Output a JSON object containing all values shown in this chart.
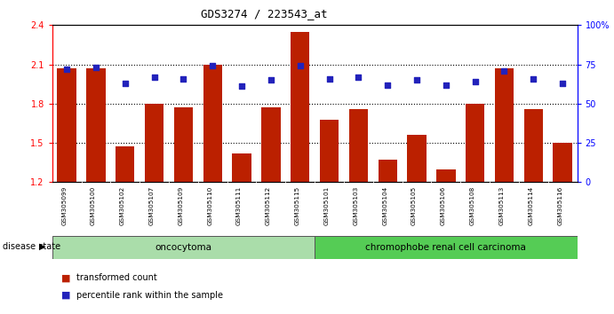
{
  "title": "GDS3274 / 223543_at",
  "samples": [
    "GSM305099",
    "GSM305100",
    "GSM305102",
    "GSM305107",
    "GSM305109",
    "GSM305110",
    "GSM305111",
    "GSM305112",
    "GSM305115",
    "GSM305101",
    "GSM305103",
    "GSM305104",
    "GSM305105",
    "GSM305106",
    "GSM305108",
    "GSM305113",
    "GSM305114",
    "GSM305116"
  ],
  "transformed_count": [
    2.07,
    2.07,
    1.47,
    1.8,
    1.77,
    2.1,
    1.42,
    1.77,
    2.35,
    1.68,
    1.76,
    1.37,
    1.56,
    1.3,
    1.8,
    2.07,
    1.76,
    1.5
  ],
  "percentile_rank": [
    72,
    73,
    63,
    67,
    66,
    74,
    61,
    65,
    74,
    66,
    67,
    62,
    65,
    62,
    64,
    71,
    66,
    63
  ],
  "ylim_left": [
    1.2,
    2.4
  ],
  "ylim_right": [
    0,
    100
  ],
  "yticks_left": [
    1.2,
    1.5,
    1.8,
    2.1,
    2.4
  ],
  "yticks_right": [
    0,
    25,
    50,
    75,
    100
  ],
  "ytick_labels_right": [
    "0",
    "25",
    "50",
    "75",
    "100%"
  ],
  "bar_color": "#bb2000",
  "dot_color": "#2222bb",
  "group1_label": "oncocytoma",
  "group2_label": "chromophobe renal cell carcinoma",
  "group1_color": "#aaddaa",
  "group2_color": "#55cc55",
  "disease_state_label": "disease state",
  "legend_bar_label": "transformed count",
  "legend_dot_label": "percentile rank within the sample",
  "n_group1": 9,
  "n_group2": 9,
  "tick_label_area_color": "#cccccc",
  "gridline_color": "#000000",
  "gridline_y": [
    1.5,
    1.8,
    2.1
  ]
}
